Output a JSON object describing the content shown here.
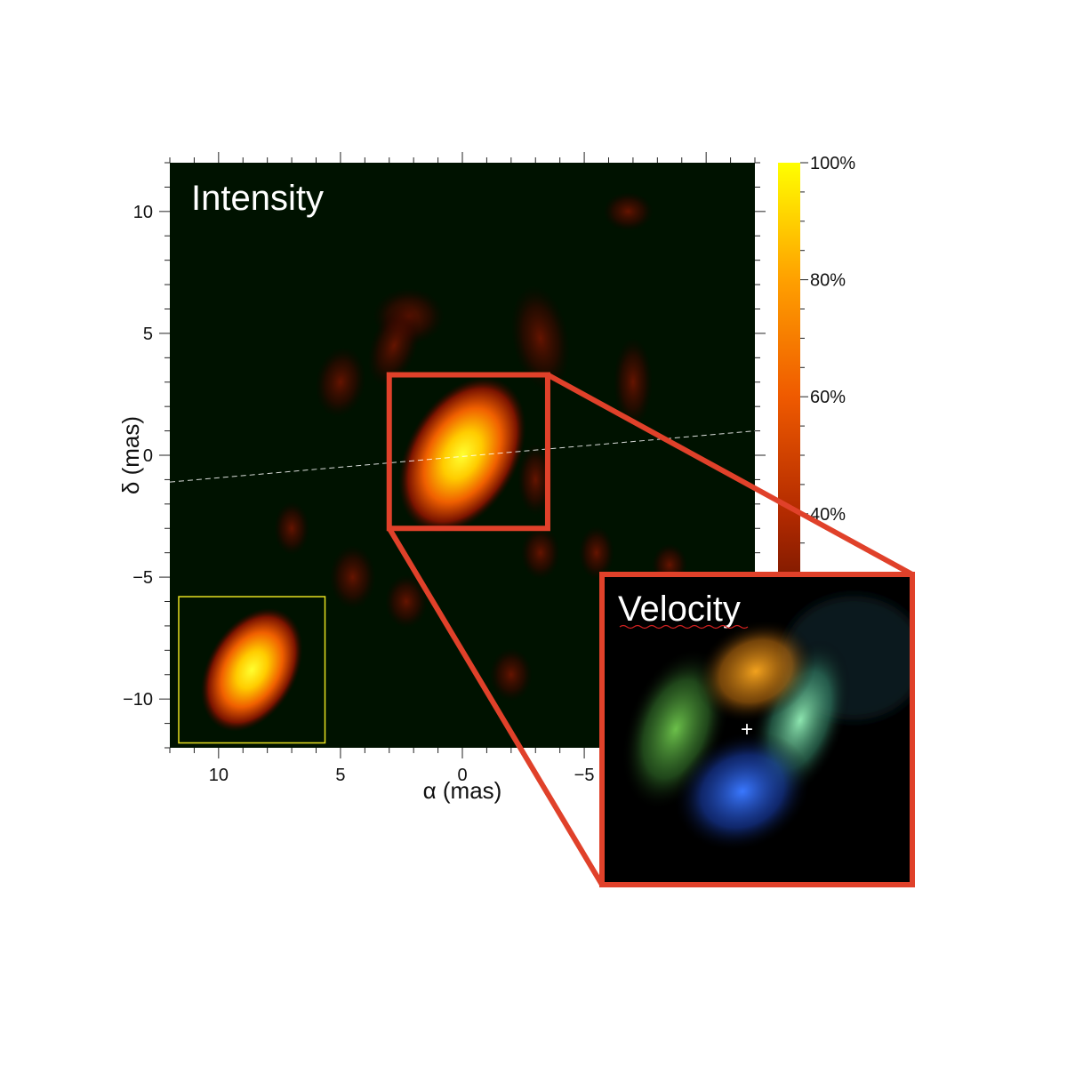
{
  "chart_data": [
    {
      "type": "heatmap",
      "title": "Intensity",
      "xlabel": "α (mas)",
      "ylabel": "δ (mas)",
      "xlim": [
        12,
        -12
      ],
      "ylim": [
        -12,
        12
      ],
      "x_ticks": [
        10,
        5,
        0,
        -5
      ],
      "y_ticks": [
        10,
        5,
        0,
        -5,
        -10
      ],
      "x_tick_labels": [
        "10",
        "5",
        "0",
        "−5"
      ],
      "y_tick_labels": [
        "10",
        "5",
        "0",
        "−5",
        "−10"
      ],
      "colorbar": {
        "labels": [
          "100%",
          "80%",
          "60%",
          "40%"
        ],
        "values": [
          100,
          80,
          60,
          40
        ],
        "range": [
          0,
          100
        ],
        "colors": [
          "#000000",
          "#5a0e00",
          "#b22a00",
          "#ef5a00",
          "#ffa000",
          "#ffff00"
        ]
      },
      "peak": {
        "x": 0,
        "y": 0
      },
      "cut_line": {
        "x": [
          12,
          -12
        ],
        "y": [
          -1.1,
          1.0
        ]
      },
      "zoom_box": {
        "x": [
          3,
          -3.5
        ],
        "y": [
          3.3,
          -3
        ]
      },
      "beam_inset": {
        "x": [
          12,
          6
        ],
        "y": [
          -5.8,
          -11.8
        ]
      },
      "grid": false
    },
    {
      "type": "heatmap",
      "title": "Velocity",
      "colors": {
        "approaching": "#3a78ff",
        "receding": "#f2a21e",
        "side_a": "#6cc04a",
        "side_b": "#8ee6b0"
      },
      "center_marker": "+"
    }
  ],
  "colors": {
    "zoom_frame": "#e0412a",
    "beam_frame": "#e6e020",
    "background": "#001200"
  }
}
